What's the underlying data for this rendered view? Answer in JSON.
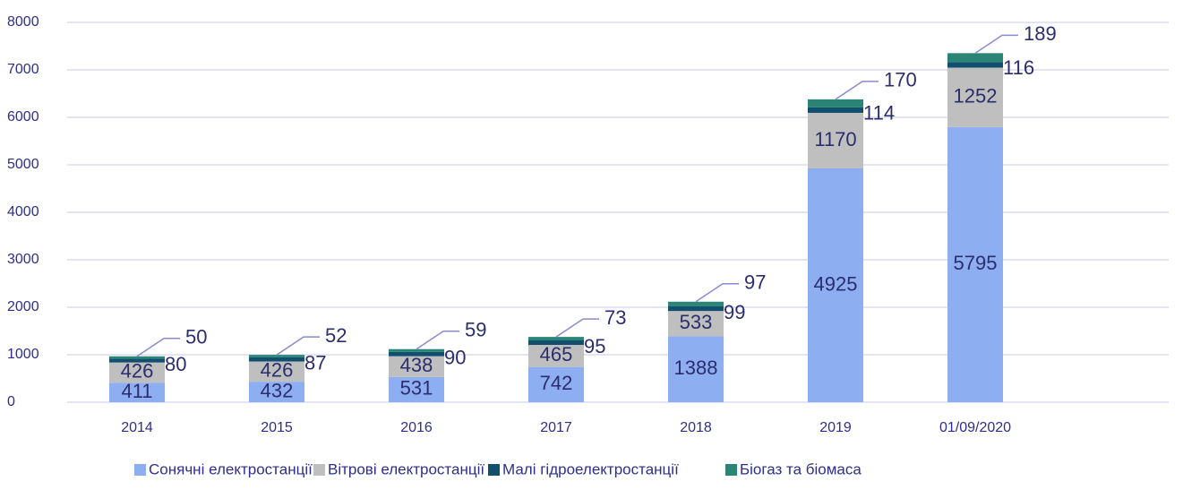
{
  "chart_data": {
    "type": "bar",
    "stacked": true,
    "categories": [
      "2014",
      "2015",
      "2016",
      "2017",
      "2018",
      "2019",
      "01/09/2020"
    ],
    "series": [
      {
        "name": "Сонячні електростанції",
        "color": "#8eaef2",
        "values": [
          411,
          432,
          531,
          742,
          1388,
          4925,
          5795
        ]
      },
      {
        "name": "Вітрові електростанції",
        "color": "#bfbfbf",
        "values": [
          426,
          426,
          438,
          465,
          533,
          1170,
          1252
        ]
      },
      {
        "name": "Малі гідроелектростанції",
        "color": "#124e6e",
        "values": [
          80,
          87,
          90,
          95,
          99,
          114,
          116
        ]
      },
      {
        "name": "Біогаз та біомаса",
        "color": "#2a8577",
        "values": [
          50,
          52,
          59,
          73,
          97,
          170,
          189
        ]
      }
    ],
    "ylim": [
      0,
      8000
    ],
    "yticks": [
      0,
      1000,
      2000,
      3000,
      4000,
      5000,
      6000,
      7000,
      8000
    ],
    "grid": true,
    "legend": "bottom"
  }
}
